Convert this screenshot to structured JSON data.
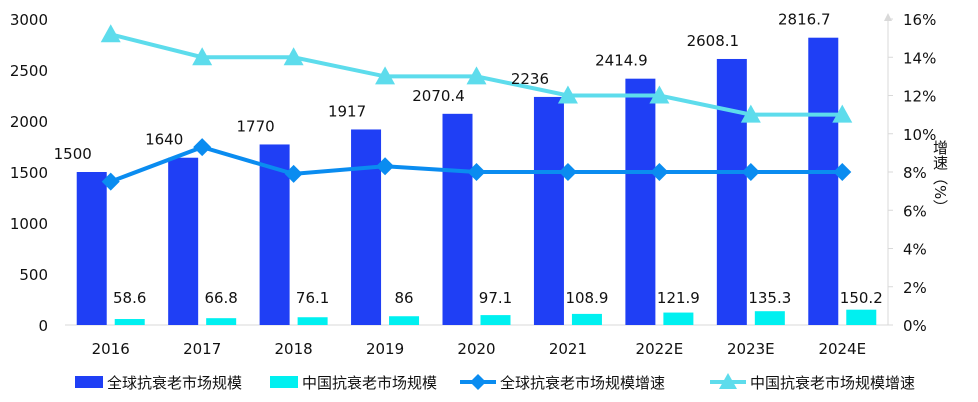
{
  "chart_data": {
    "type": "bar",
    "title": "",
    "xlabel": "",
    "ylabel": "",
    "y2label": "增速（%）",
    "ylim": [
      0,
      3000
    ],
    "y2lim": [
      0,
      16
    ],
    "yticks": [
      "0",
      "500",
      "1000",
      "1500",
      "2000",
      "2500",
      "3000"
    ],
    "y2ticks": [
      "0%",
      "2%",
      "4%",
      "6%",
      "8%",
      "10%",
      "12%",
      "14%",
      "16%"
    ],
    "grid": false,
    "legend_position": "bottom",
    "categories": [
      "2016",
      "2017",
      "2018",
      "2019",
      "2020",
      "2021",
      "2022E",
      "2023E",
      "2024E"
    ],
    "series": [
      {
        "name": "全球抗衰老市场规模",
        "type": "bar",
        "axis": "left",
        "color": "#1f3ff5",
        "values": [
          1500,
          1640,
          1770,
          1917,
          2070.4,
          2236,
          2414.9,
          2608.1,
          2816.7
        ],
        "labels": [
          "1500",
          "1640",
          "1770",
          "1917",
          "2070.4",
          "2236",
          "2414.9",
          "2608.1",
          "2816.7"
        ]
      },
      {
        "name": "中国抗衰老市场规模",
        "type": "bar",
        "axis": "left",
        "color": "#00f0f0",
        "values": [
          58.6,
          66.8,
          76.1,
          86,
          97.1,
          108.9,
          121.9,
          135.3,
          150.2
        ],
        "labels": [
          "58.6",
          "66.8",
          "76.1",
          "86",
          "97.1",
          "108.9",
          "121.9",
          "135.3",
          "150.2"
        ]
      },
      {
        "name": "全球抗衰老市场规模增速",
        "type": "line",
        "axis": "right",
        "marker": "diamond",
        "color": "#0a8cf0",
        "values": [
          7.5,
          9.3,
          7.9,
          8.3,
          8.0,
          8.0,
          8.0,
          8.0,
          8.0
        ]
      },
      {
        "name": "中国抗衰老市场规模增速",
        "type": "line",
        "axis": "right",
        "marker": "triangle",
        "color": "#5ddcec",
        "values": [
          15.2,
          14.0,
          14.0,
          13.0,
          13.0,
          12.0,
          12.0,
          11.0,
          11.0
        ]
      }
    ]
  }
}
